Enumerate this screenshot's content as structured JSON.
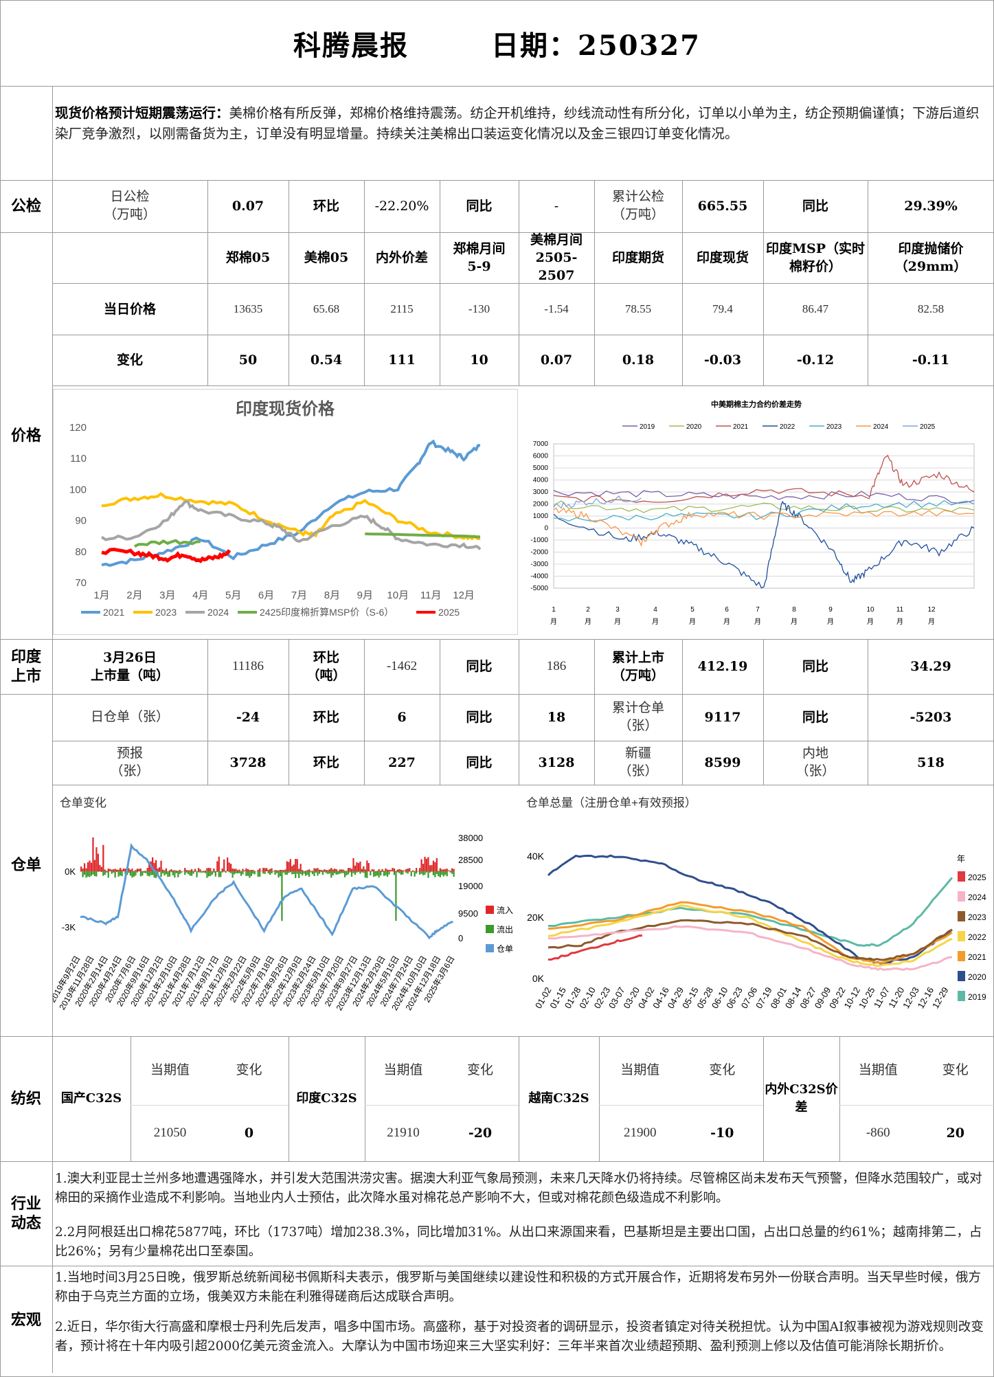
{
  "header": {
    "title": "科腾晨报",
    "date_label": "日期：250327"
  },
  "summary": {
    "lead": "现货价格预计短期震荡运行：",
    "text": "美棉价格有所反弹，郑棉价格维持震荡。纺企开机维持，纱线流动性有所分化，订单以小单为主，纺企预期偏谨慎；下游后道织染厂竞争激烈，以刚需备货为主，订单没有明显增量。持续关注美棉出口装运变化情况以及金三银四订单变化情况。"
  },
  "inspection": {
    "label": "公检",
    "daily_label": "日公检\n（万吨）",
    "daily": "0.07",
    "hb_label": "环比",
    "hb": "-22.20%",
    "tb_label": "同比",
    "tb": "-",
    "cum_label": "累计公检\n（万吨）",
    "cum": "665.55",
    "tb2_label": "同比",
    "tb2": "29.39%"
  },
  "price": {
    "label": "价格",
    "headers": [
      "郑棉05",
      "美棉05",
      "内外价差",
      "郑棉月间\n5-9",
      "美棉月间\n2505-2507",
      "印度期货",
      "印度现货",
      "印度MSP（实时\n棉籽价）",
      "印度抛储价\n（29mm）"
    ],
    "row1_label": "当日价格",
    "row1": [
      "13635",
      "65.68",
      "2115",
      "-130",
      "-1.54",
      "78.55",
      "79.4",
      "86.47",
      "82.58"
    ],
    "row2_label": "变化",
    "row2": [
      "50",
      "0.54",
      "111",
      "10",
      "0.07",
      "0.18",
      "-0.03",
      "-0.12",
      "-0.11"
    ]
  },
  "chart_india": {
    "title": "印度现货价格",
    "yticks": [
      "120",
      "110",
      "100",
      "90",
      "80",
      "70"
    ],
    "months": [
      "1月",
      "2月",
      "3月",
      "4月",
      "5月",
      "6月",
      "7月",
      "8月",
      "9月",
      "10月",
      "11月",
      "12月"
    ],
    "legend": [
      "2021",
      "2023",
      "2024",
      "2425印度棉折算MSP价（S-6）",
      "2025"
    ],
    "colors": [
      "#5b9bd5",
      "#ffc000",
      "#a5a5a5",
      "#70ad47",
      "#ff0000"
    ]
  },
  "chart_spread": {
    "title": "中美期棉主力合约价差走势",
    "legend": [
      "2019",
      "2020",
      "2021",
      "2022",
      "2023",
      "2024",
      "2025"
    ],
    "colors": [
      "#7b5ea7",
      "#9bbb59",
      "#c0504d",
      "#1f4e9c",
      "#4bacc6",
      "#f79646",
      "#7ea6d6"
    ],
    "yticks": [
      "7000",
      "6000",
      "5000",
      "4000",
      "3000",
      "2000",
      "1000",
      "0",
      "-1000",
      "-2000",
      "-3000",
      "-4000",
      "-5000"
    ],
    "xticks": [
      "1\n月",
      "2\n月",
      "3\n月",
      "4\n月",
      "5\n月",
      "6\n月",
      "7\n月",
      "8\n月",
      "9\n月",
      "10\n月",
      "11\n月",
      "12\n月"
    ]
  },
  "india_market": {
    "label": "印度\n上市",
    "date_label": "3月26日\n上市量（吨）",
    "value": "11186",
    "hb_label": "环比\n（吨）",
    "hb": "-1462",
    "tb_label": "同比",
    "tb": "186",
    "cum_label": "累计上市\n（万吨）",
    "cum": "412.19",
    "tb2_label": "同比",
    "tb2": "34.29"
  },
  "warehouse": {
    "label": "仓单",
    "r1": {
      "a_label": "日仓单（张）",
      "a": "-24",
      "hb_label": "环比",
      "hb": "6",
      "tb_label": "同比",
      "tb": "18",
      "cum_label": "累计仓单\n（张）",
      "cum": "9117",
      "tb2_label": "同比",
      "tb2": "-5203"
    },
    "r2": {
      "a_label": "预报\n（张）",
      "a": "3728",
      "hb_label": "环比",
      "hb": "227",
      "tb_label": "同比",
      "tb": "3128",
      "xj_label": "新疆\n（张）",
      "xj": "8599",
      "nd_label": "内地\n（张）",
      "nd": "518"
    }
  },
  "chart_wr_change": {
    "title": "仓单变化",
    "left_ticks": [
      "0K",
      "-3K"
    ],
    "right_ticks": [
      "38000",
      "28500",
      "19000",
      "9500",
      "0"
    ],
    "legend": [
      "流入",
      "流出",
      "仓单"
    ],
    "colors": [
      "#e0262a",
      "#3a9a2a",
      "#5b9bd5"
    ],
    "xticks": [
      "2019年9月2日",
      "2019年11月28日",
      "2020年2月14日",
      "2020年4月24日",
      "2020年7月6日",
      "2020年9月16日",
      "2020年12月2日",
      "2021年2月10日",
      "2021年4月28日",
      "2021年7月12日",
      "2021年9月17日",
      "2021年12月6日",
      "2022年2月22日",
      "2022年5月9日",
      "2022年7月18日",
      "2022年9月26日",
      "2022年12月9日",
      "2023年2月24日",
      "2023年5月10日",
      "2023年7月20日",
      "2023年9月27日",
      "2023年12月13日",
      "2024年2月29日",
      "2024年5月15日",
      "2024年7月24日",
      "2024年10月10日",
      "2024年12月18日",
      "2025年3月6日"
    ]
  },
  "chart_wr_total": {
    "title": "仓单总量（注册仓单+有效预报）",
    "yticks": [
      "40K",
      "20K",
      "0K"
    ],
    "legend_title": "年",
    "legend": [
      "2025",
      "2024",
      "2023",
      "2022",
      "2021",
      "2020",
      "2019"
    ],
    "colors": [
      "#e0393e",
      "#f6b3c8",
      "#8c5a2b",
      "#f5d547",
      "#f39c2a",
      "#2e4f8c",
      "#5db9a5"
    ],
    "xticks": [
      "01-02",
      "01-15",
      "01-28",
      "02-10",
      "02-23",
      "03-07",
      "03-20",
      "04-02",
      "04-16",
      "04-29",
      "05-15",
      "05-28",
      "06-10",
      "06-23",
      "07-06",
      "07-19",
      "08-01",
      "08-14",
      "08-27",
      "09-09",
      "09-22",
      "10-12",
      "10-25",
      "11-07",
      "11-20",
      "12-03",
      "12-16",
      "12-29"
    ]
  },
  "textile": {
    "label": "纺织",
    "items": [
      {
        "name": "国产C32S",
        "cur_label": "当期值",
        "chg_label": "变化",
        "cur": "21050",
        "chg": "0"
      },
      {
        "name": "印度C32S",
        "cur_label": "当期值",
        "chg_label": "变化",
        "cur": "21910",
        "chg": "-20"
      },
      {
        "name": "越南C32S",
        "cur_label": "当期值",
        "chg_label": "变化",
        "cur": "21900",
        "chg": "-10"
      },
      {
        "name": "内外C32S价差",
        "cur_label": "当期值",
        "chg_label": "变化",
        "cur": "-860",
        "chg": "20"
      }
    ]
  },
  "industry": {
    "label": "行业\n动态",
    "p1": "1.澳大利亚昆士兰州多地遭遇强降水，并引发大范围洪涝灾害。据澳大利亚气象局预测，未来几天降水仍将持续。尽管棉区尚未发布天气预警，但降水范围较广，或对棉田的采摘作业造成不利影响。当地业内人士预估，此次降水虽对棉花总产影响不大，但或对棉花颜色级造成不利影响。",
    "p2": "2.2月阿根廷出口棉花5877吨，环比（1737吨）增加238.3%，同比增加31%。从出口来源国来看，巴基斯坦是主要出口国，占出口总量的约61%；越南排第二，占比26%；另有少量棉花出口至泰国。"
  },
  "macro": {
    "label": "宏观",
    "p1": "1.当地时间3月25日晚，俄罗斯总统新闻秘书佩斯科夫表示，俄罗斯与美国继续以建设性和积极的方式开展合作，近期将发布另外一份联合声明。当天早些时候，俄方称由于乌克兰方面的立场，俄美双方未能在利雅得磋商后达成联合声明。",
    "p2": "2.近日，华尔街大行高盛和摩根士丹利先后发声，唱多中国市场。高盛称，基于对投资者的调研显示，投资者镇定对待关税担忧。认为中国AI叙事被视为游戏规则改变者，预计将在十年内吸引超2000亿美元资金流入。大摩认为中国市场迎来三大坚实利好：三年半来首次业绩超预期、盈利预测上修以及估值可能消除长期折价。"
  }
}
